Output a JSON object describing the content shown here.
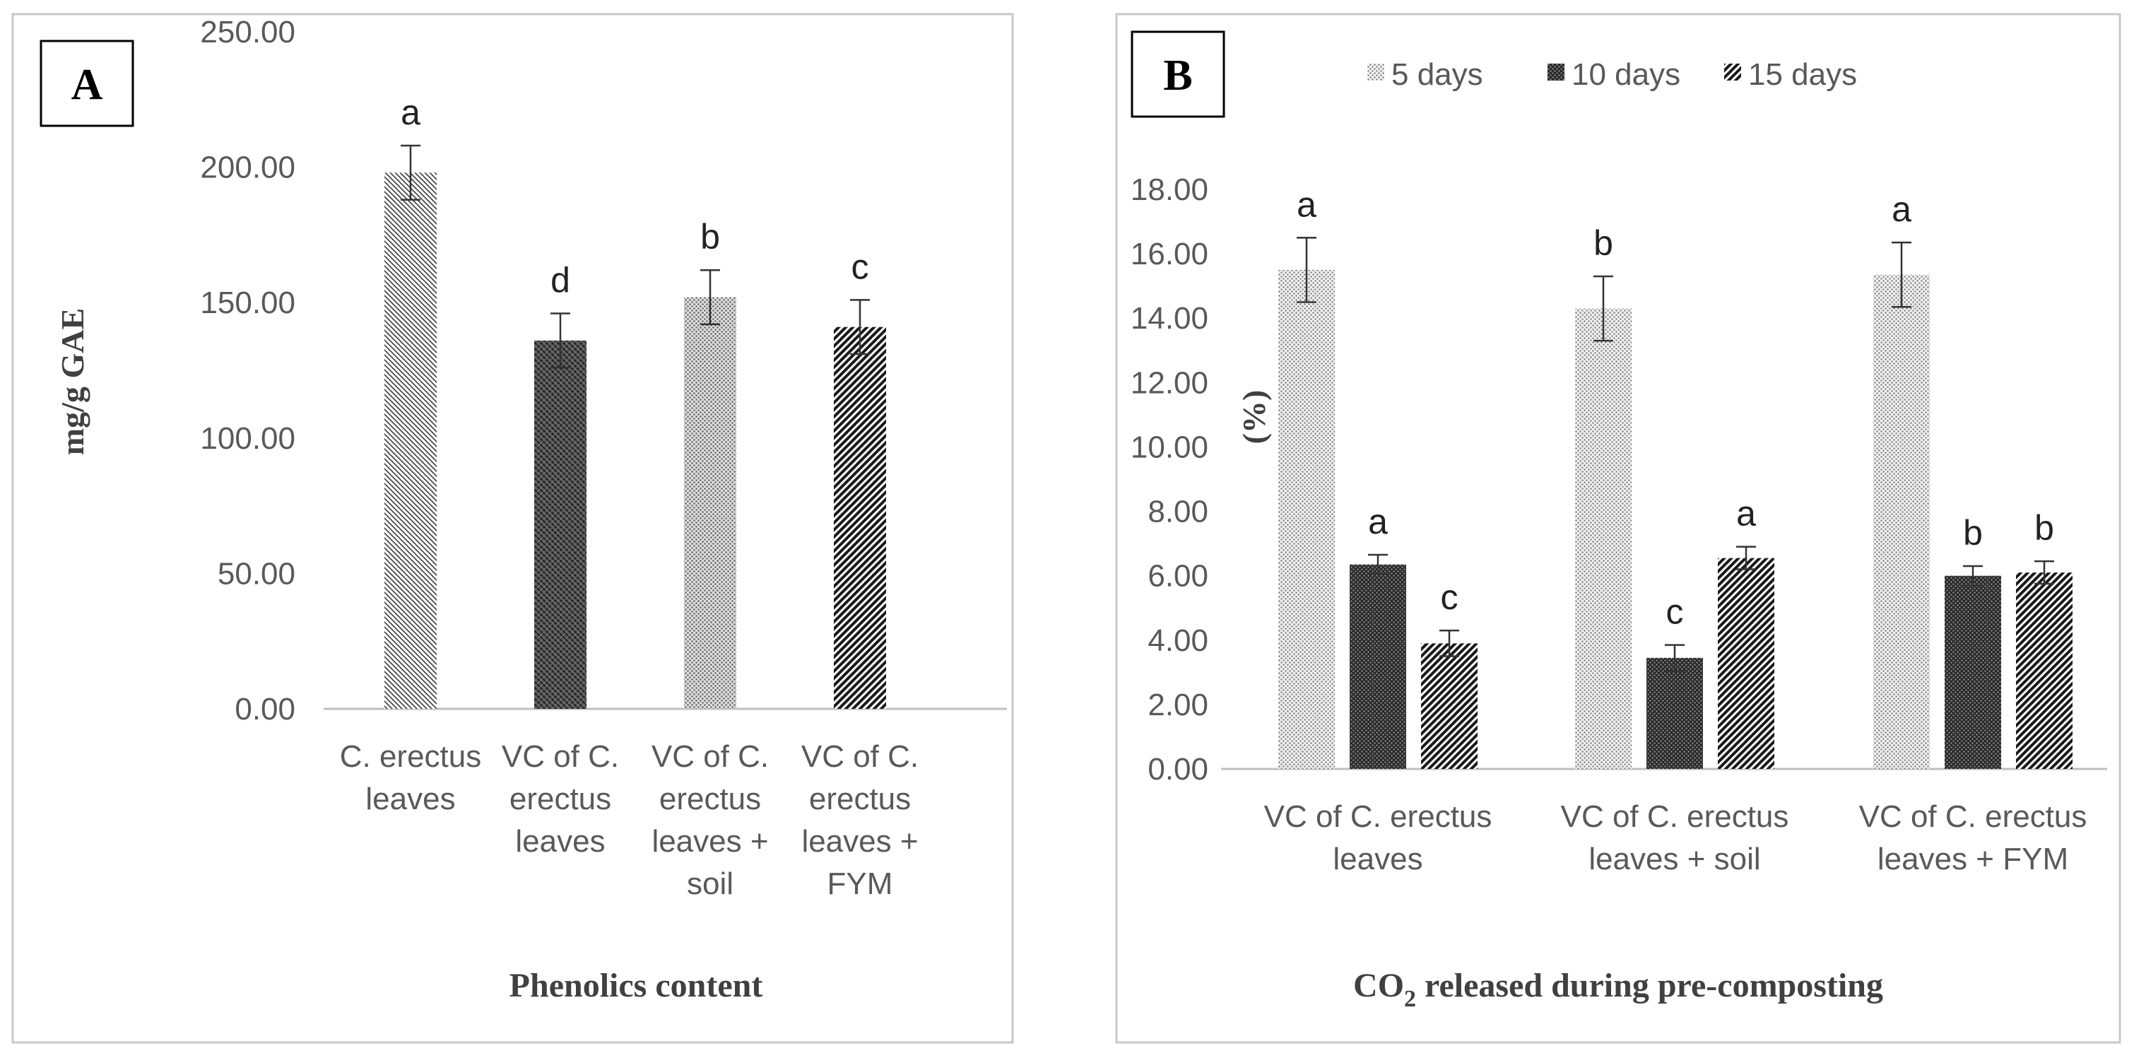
{
  "chart_data": [
    {
      "panel": "A",
      "type": "bar",
      "title": "Phenolics content",
      "ylabel": "mg/g GAE",
      "xlabel": "",
      "ylim": [
        0,
        250
      ],
      "yticks": [
        "0.00",
        "50.00",
        "100.00",
        "150.00",
        "200.00",
        "250.00"
      ],
      "categories": [
        [
          "C. erectus",
          "leaves"
        ],
        [
          "VC of C.",
          "erectus",
          "leaves"
        ],
        [
          "VC of C.",
          "erectus",
          "leaves +",
          "soil"
        ],
        [
          "VC of C.",
          "erectus",
          "leaves +",
          "FYM"
        ]
      ],
      "values": [
        198,
        136,
        152,
        141
      ],
      "errors": [
        10,
        10,
        10,
        10
      ],
      "significance": [
        "a",
        "d",
        "b",
        "c"
      ],
      "patterns": [
        "diag-dense",
        "diag-wide",
        "dots",
        "diag-bold"
      ],
      "legend": null
    },
    {
      "panel": "B",
      "type": "bar",
      "title": "CO2 released during pre-composting",
      "title_main": "CO",
      "title_sub": "2",
      "title_rest": " released during pre-composting",
      "ylabel": "(%)",
      "xlabel": "",
      "ylim": [
        0,
        18
      ],
      "yticks": [
        "0.00",
        "2.00",
        "4.00",
        "6.00",
        "8.00",
        "10.00",
        "12.00",
        "14.00",
        "16.00",
        "18.00"
      ],
      "categories": [
        [
          "VC of C. erectus",
          "leaves"
        ],
        [
          "VC of C. erectus",
          "leaves + soil"
        ],
        [
          "VC of C. erectus",
          "leaves + FYM"
        ]
      ],
      "series": [
        {
          "name": "5 days",
          "values": [
            15.5,
            14.3,
            15.35
          ],
          "errors": [
            1.0,
            1.0,
            1.0
          ],
          "significance": [
            "a",
            "b",
            "a"
          ],
          "pattern": "dots-light"
        },
        {
          "name": "10 days",
          "values": [
            6.35,
            3.45,
            6.0
          ],
          "errors": [
            0.3,
            0.4,
            0.3
          ],
          "significance": [
            "a",
            "c",
            "b"
          ],
          "pattern": "dots-dark"
        },
        {
          "name": "15 days",
          "values": [
            3.9,
            6.55,
            6.1
          ],
          "errors": [
            0.4,
            0.35,
            0.35
          ],
          "significance": [
            "c",
            "a",
            "b"
          ],
          "pattern": "diag-bold"
        }
      ],
      "legend": "top"
    }
  ]
}
